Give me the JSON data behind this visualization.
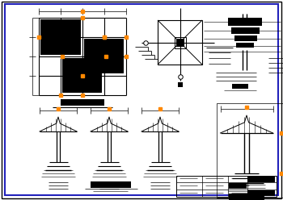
{
  "bg_color": "#ffffff",
  "outer_border_color": "#000000",
  "inner_border_color": "#2222bb",
  "line_color": "#000000",
  "orange_color": "#ff8800",
  "black_fill": "#000000"
}
